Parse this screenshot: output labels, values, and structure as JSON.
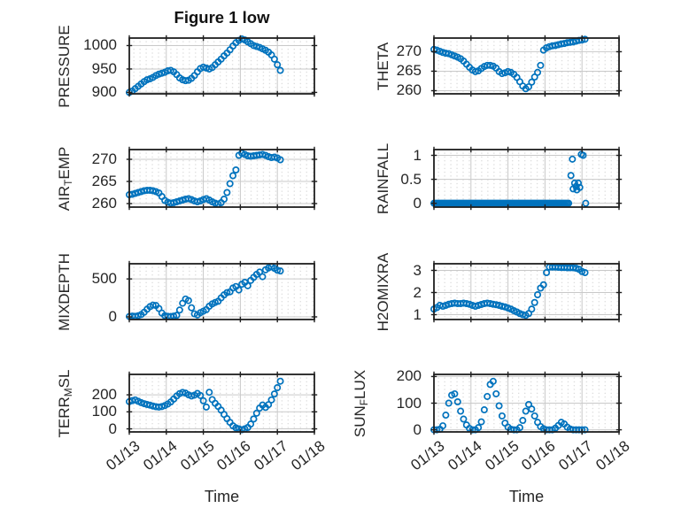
{
  "title": "Figure 1 low",
  "xlabel": "Time",
  "x_tick_labels": [
    "01/13",
    "01/14",
    "01/15",
    "01/16",
    "01/17",
    "01/18"
  ],
  "x_tick_days": [
    0,
    1,
    2,
    3,
    4,
    5
  ],
  "colors": {
    "marker": "#0072BD",
    "axis_box": "#1f1f1f",
    "text": "#262626",
    "major_grid": "#c9c9c9",
    "minor_grid": "#cfcfcf"
  },
  "chart_data": [
    {
      "type": "scatter",
      "name": "pressure",
      "label": "PRESSURE",
      "label_parts": [
        {
          "t": "PRESSURE"
        }
      ],
      "yticks": [
        900,
        950,
        1000
      ],
      "ylim": [
        897,
        1016
      ],
      "xlim": [
        0,
        5
      ],
      "x_unit": "days since 01/13",
      "x0": 0,
      "dx": 0.08,
      "y": [
        900,
        903,
        908,
        913,
        918,
        923,
        927,
        929,
        932,
        936,
        939,
        941,
        943,
        946,
        947,
        944,
        938,
        931,
        927,
        925,
        926,
        930,
        936,
        944,
        951,
        954,
        952,
        950,
        953,
        959,
        965,
        971,
        978,
        984,
        991,
        999,
        1006,
        1011,
        1014,
        1012,
        1008,
        1004,
        1000,
        998,
        996,
        993,
        990,
        986,
        980,
        971,
        959,
        947
      ]
    },
    {
      "type": "scatter",
      "name": "theta",
      "label": "THETA",
      "label_parts": [
        {
          "t": "THETA"
        }
      ],
      "yticks": [
        260,
        265,
        270
      ],
      "ylim": [
        259.2,
        273.5
      ],
      "xlim": [
        0,
        5
      ],
      "x_unit": "days since 01/13",
      "x0": 0,
      "dx": 0.08,
      "y": [
        270.6,
        270.4,
        270.1,
        269.8,
        269.6,
        269.5,
        269.2,
        268.9,
        268.6,
        268.2,
        267.6,
        266.8,
        266.0,
        265.3,
        264.9,
        265.1,
        265.7,
        266.2,
        266.5,
        266.5,
        266.3,
        265.8,
        264.9,
        264.4,
        264.6,
        264.9,
        264.7,
        264.2,
        263.4,
        262.3,
        261.2,
        260.5,
        261.0,
        262.2,
        263.5,
        264.7,
        266.5,
        270.4,
        271.0,
        271.3,
        271.5,
        271.6,
        271.8,
        272.0,
        272.1,
        272.3,
        272.4,
        272.5,
        272.7,
        272.9,
        273.0,
        273.2
      ]
    },
    {
      "type": "scatter",
      "name": "air-temp",
      "label": "AIR_TEMP",
      "label_parts": [
        {
          "t": "AIR"
        },
        {
          "t": "T",
          "sub": true
        },
        {
          "t": "EMP"
        }
      ],
      "yticks": [
        260,
        265,
        270
      ],
      "ylim": [
        259.2,
        272.2
      ],
      "xlim": [
        0,
        5
      ],
      "x_unit": "days since 01/13",
      "x0": 0,
      "dx": 0.08,
      "y": [
        262.0,
        262.1,
        262.3,
        262.5,
        262.7,
        262.9,
        263.0,
        263.0,
        262.9,
        262.7,
        262.4,
        261.6,
        260.7,
        260.3,
        260.1,
        260.2,
        260.4,
        260.6,
        260.8,
        261.0,
        261.1,
        260.9,
        260.6,
        260.4,
        260.6,
        260.9,
        261.1,
        260.8,
        260.4,
        260.1,
        259.9,
        260.2,
        261.0,
        262.5,
        264.5,
        266.3,
        267.6,
        270.9,
        271.4,
        271.1,
        270.8,
        270.7,
        270.8,
        270.9,
        271.0,
        271.1,
        270.9,
        270.6,
        270.4,
        270.5,
        270.3,
        269.9
      ]
    },
    {
      "type": "scatter",
      "name": "rainfall",
      "label": "RAINFALL",
      "label_parts": [
        {
          "t": "RAINFALL"
        }
      ],
      "yticks": [
        0,
        0.5,
        1
      ],
      "ylim": [
        -0.08,
        1.12
      ],
      "xlim": [
        0,
        5
      ],
      "x_unit": "days since 01/13",
      "zero_run": {
        "from": 0,
        "to": 3.64,
        "step": 0.04,
        "y": 0
      },
      "points": [
        [
          3.7,
          0.58
        ],
        [
          3.74,
          0.92
        ],
        [
          3.76,
          0.3
        ],
        [
          3.8,
          0.42
        ],
        [
          3.84,
          0.35
        ],
        [
          3.86,
          0.28
        ],
        [
          3.9,
          0.42
        ],
        [
          3.94,
          0.33
        ],
        [
          3.98,
          1.02
        ],
        [
          4.03,
          1.0
        ],
        [
          4.1,
          0.0
        ]
      ]
    },
    {
      "type": "scatter",
      "name": "mixdepth",
      "label": "MIXDEPTH",
      "label_parts": [
        {
          "t": "MIXDEPTH"
        }
      ],
      "yticks": [
        0,
        500
      ],
      "ylim": [
        -35,
        700
      ],
      "xlim": [
        0,
        5
      ],
      "x_unit": "days since 01/13",
      "x0": 0,
      "dx": 0.08,
      "y": [
        5,
        10,
        8,
        15,
        30,
        60,
        100,
        135,
        155,
        150,
        110,
        50,
        15,
        8,
        5,
        10,
        20,
        90,
        180,
        235,
        215,
        120,
        40,
        25,
        55,
        75,
        95,
        140,
        170,
        190,
        205,
        250,
        290,
        320,
        330,
        380,
        400,
        355,
        430,
        455,
        410,
        480,
        520,
        560,
        590,
        530,
        620,
        645,
        660,
        640,
        615,
        605
      ]
    },
    {
      "type": "scatter",
      "name": "h2omixra",
      "label": "H2OMIXRA",
      "label_parts": [
        {
          "t": "H2OMIXRA"
        }
      ],
      "yticks": [
        1,
        2,
        3
      ],
      "ylim": [
        0.78,
        3.3
      ],
      "xlim": [
        0,
        5
      ],
      "x_unit": "days since 01/13",
      "x0": 0,
      "dx": 0.08,
      "y": [
        1.25,
        1.32,
        1.42,
        1.38,
        1.42,
        1.47,
        1.5,
        1.52,
        1.5,
        1.5,
        1.52,
        1.5,
        1.47,
        1.42,
        1.38,
        1.42,
        1.46,
        1.5,
        1.52,
        1.5,
        1.47,
        1.45,
        1.42,
        1.38,
        1.35,
        1.3,
        1.25,
        1.18,
        1.12,
        1.05,
        1.0,
        0.97,
        1.05,
        1.25,
        1.55,
        1.9,
        2.2,
        2.35,
        2.9,
        3.15,
        3.15,
        3.15,
        3.14,
        3.13,
        3.13,
        3.12,
        3.12,
        3.12,
        3.1,
        3.05,
        2.95,
        2.9
      ]
    },
    {
      "type": "scatter",
      "name": "terr-msl",
      "label": "TERR_MSL",
      "label_parts": [
        {
          "t": "TERR"
        },
        {
          "t": "M",
          "sub": true
        },
        {
          "t": "SL"
        }
      ],
      "yticks": [
        0,
        100,
        200
      ],
      "ylim": [
        -18,
        320
      ],
      "xlim": [
        0,
        5
      ],
      "x_unit": "days since 01/13",
      "x0": 0,
      "dx": 0.08,
      "y": [
        160,
        166,
        170,
        162,
        154,
        148,
        143,
        139,
        134,
        130,
        128,
        131,
        137,
        146,
        158,
        175,
        193,
        207,
        214,
        210,
        200,
        193,
        198,
        208,
        196,
        165,
        128,
        215,
        172,
        150,
        132,
        110,
        85,
        60,
        38,
        18,
        6,
        0,
        -5,
        0,
        8,
        28,
        58,
        92,
        122,
        140,
        126,
        142,
        170,
        205,
        242,
        280
      ]
    },
    {
      "type": "scatter",
      "name": "sun-flux",
      "label": "SUN_FLUX",
      "label_parts": [
        {
          "t": "SUN"
        },
        {
          "t": "F",
          "sub": true
        },
        {
          "t": "LUX"
        }
      ],
      "yticks": [
        0,
        100,
        200
      ],
      "ylim": [
        -8,
        208
      ],
      "xlim": [
        0,
        5
      ],
      "x_unit": "days since 01/13",
      "x0": 0,
      "dx": 0.08,
      "y": [
        0,
        0,
        2,
        15,
        55,
        100,
        130,
        135,
        105,
        70,
        40,
        18,
        5,
        0,
        0,
        8,
        30,
        75,
        125,
        170,
        182,
        135,
        90,
        52,
        25,
        10,
        2,
        0,
        0,
        8,
        35,
        70,
        95,
        78,
        52,
        28,
        12,
        4,
        0,
        0,
        0,
        6,
        16,
        28,
        22,
        10,
        3,
        0,
        0,
        0,
        0,
        0
      ]
    }
  ]
}
